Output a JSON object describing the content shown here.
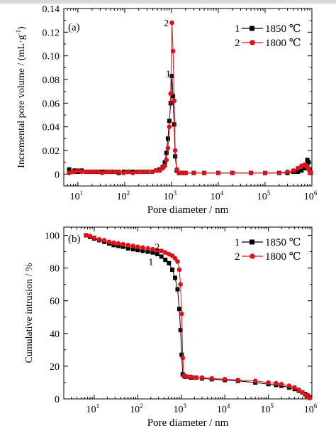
{
  "chart_data": [
    {
      "type": "line",
      "panel_label": "(a)",
      "xlabel": "Pore diameter / nm",
      "ylabel": "Incremental pore volume / (mL·g",
      "ylabel_sup": "-1",
      "ylabel_close": ")",
      "xscale": "log",
      "xlim": [
        5,
        1000000
      ],
      "ylim": [
        -0.01,
        0.14
      ],
      "x_ticks": [
        10,
        100,
        1000,
        10000,
        100000,
        1000000
      ],
      "x_ticklabels": [
        {
          "base": "10",
          "exp": "1"
        },
        {
          "base": "10",
          "exp": "2"
        },
        {
          "base": "10",
          "exp": "3"
        },
        {
          "base": "10",
          "exp": "4"
        },
        {
          "base": "10",
          "exp": "5"
        },
        {
          "base": "10",
          "exp": "6"
        }
      ],
      "y_ticks": [
        "0",
        "0.02",
        "0.04",
        "0.06",
        "0.08",
        "0.10",
        "0.12",
        "0.14"
      ],
      "legend_position": "top-right",
      "annotations": [
        {
          "text": "1",
          "x": 850,
          "y": 0.085
        },
        {
          "text": "2",
          "x": 780,
          "y": 0.128
        }
      ],
      "series": [
        {
          "name": "1850 ℃",
          "legend_number": "1",
          "color": "#000000",
          "marker": "square",
          "x": [
            6.5,
            7.5,
            8.5,
            10,
            12,
            15,
            18,
            22,
            27,
            33,
            40,
            50,
            62,
            75,
            95,
            120,
            150,
            190,
            240,
            300,
            380,
            470,
            560,
            650,
            720,
            780,
            840,
            900,
            960,
            1020,
            1080,
            1140,
            1200,
            1300,
            1450,
            1700,
            2000,
            3000,
            5000,
            10000,
            20000,
            50000,
            100000,
            200000,
            300000,
            400000,
            500000,
            600000,
            700000,
            750000,
            800000,
            850000,
            900000,
            950000
          ],
          "y": [
            0.004,
            0.002,
            0.003,
            0.002,
            0.003,
            0.002,
            0.002,
            0.002,
            0.002,
            0.002,
            0.002,
            0.002,
            0.002,
            0.001,
            0.002,
            0.002,
            0.002,
            0.002,
            0.002,
            0.002,
            0.002,
            0.003,
            0.004,
            0.006,
            0.01,
            0.018,
            0.03,
            0.045,
            0.06,
            0.083,
            0.066,
            0.042,
            0.015,
            0.003,
            0.001,
            0.001,
            0.001,
            0.001,
            0.001,
            0.001,
            0.001,
            0.001,
            0.001,
            0.001,
            0.001,
            0.002,
            0.002,
            0.003,
            0.005,
            0.008,
            0.012,
            0.01,
            0.004,
            0.001
          ]
        },
        {
          "name": "1800 ℃",
          "legend_number": "2",
          "color": "#e0101a",
          "marker": "circle",
          "x": [
            6.5,
            7.5,
            8.5,
            10,
            12,
            15,
            18,
            22,
            27,
            33,
            40,
            50,
            62,
            75,
            95,
            120,
            150,
            190,
            240,
            300,
            380,
            470,
            560,
            650,
            720,
            780,
            840,
            900,
            960,
            1020,
            1080,
            1140,
            1200,
            1300,
            1450,
            1700,
            2000,
            3000,
            5000,
            10000,
            20000,
            50000,
            100000,
            200000,
            300000,
            400000,
            500000,
            600000,
            700000,
            750000,
            800000,
            850000,
            900000,
            950000
          ],
          "y": [
            0.001,
            0.002,
            0.002,
            0.003,
            0.002,
            0.002,
            0.002,
            0.002,
            0.002,
            0.001,
            0.002,
            0.002,
            0.002,
            0.002,
            0.001,
            0.002,
            0.001,
            0.002,
            0.002,
            0.002,
            0.002,
            0.003,
            0.003,
            0.005,
            0.007,
            0.012,
            0.022,
            0.04,
            0.068,
            0.128,
            0.104,
            0.062,
            0.02,
            0.004,
            0.001,
            0.001,
            0.001,
            0.001,
            0.001,
            0.001,
            0.001,
            0.001,
            0.001,
            0.001,
            0.002,
            0.003,
            0.005,
            0.007,
            0.008,
            0.007,
            0.006,
            0.004,
            0.002,
            0.001
          ]
        }
      ]
    },
    {
      "type": "line",
      "panel_label": "(b)",
      "xlabel": "Pore diameter / nm",
      "ylabel": "Cumulative intrusion / %",
      "xscale": "log",
      "xlim": [
        2,
        1000000
      ],
      "ylim": [
        0,
        105
      ],
      "x_ticks": [
        10,
        100,
        1000,
        10000,
        100000,
        1000000
      ],
      "x_ticklabels": [
        {
          "base": "10",
          "exp": "1"
        },
        {
          "base": "10",
          "exp": "2"
        },
        {
          "base": "10",
          "exp": "3"
        },
        {
          "base": "10",
          "exp": "4"
        },
        {
          "base": "10",
          "exp": "5"
        },
        {
          "base": "10",
          "exp": "6"
        }
      ],
      "y_ticks": [
        "0",
        "20",
        "40",
        "60",
        "80",
        "100"
      ],
      "legend_position": "top-right",
      "annotations": [
        {
          "text": "1",
          "x": 200,
          "y": 84
        },
        {
          "text": "2",
          "x": 280,
          "y": 93
        }
      ],
      "series": [
        {
          "name": "1850 ℃",
          "legend_number": "1",
          "color": "#000000",
          "marker": "square",
          "x": [
            6.5,
            8,
            10,
            13,
            17,
            22,
            28,
            36,
            46,
            60,
            78,
            100,
            130,
            170,
            220,
            280,
            350,
            430,
            520,
            620,
            720,
            820,
            900,
            960,
            1020,
            1080,
            1150,
            1250,
            1400,
            1700,
            2200,
            3000,
            5000,
            10000,
            20000,
            50000,
            100000,
            150000,
            200000,
            300000,
            400000,
            500000,
            600000,
            700000,
            800000,
            900000
          ],
          "y": [
            100,
            99,
            98,
            97,
            96,
            95,
            94,
            93.5,
            93,
            92,
            91.5,
            91,
            90.5,
            90,
            89.5,
            88.5,
            87,
            85,
            83,
            79,
            74,
            67,
            55,
            42,
            27,
            15,
            14,
            13.5,
            13.5,
            13,
            13,
            12.5,
            12,
            11.5,
            11,
            10,
            9,
            8.5,
            8,
            7,
            6,
            5,
            4,
            3,
            2,
            1
          ]
        },
        {
          "name": "1800 ℃",
          "legend_number": "2",
          "color": "#e0101a",
          "marker": "circle",
          "x": [
            6.5,
            8,
            10,
            13,
            17,
            22,
            28,
            36,
            46,
            60,
            78,
            100,
            130,
            170,
            220,
            280,
            350,
            430,
            520,
            620,
            720,
            820,
            900,
            960,
            1020,
            1080,
            1150,
            1250,
            1400,
            1700,
            2200,
            3000,
            5000,
            10000,
            20000,
            50000,
            100000,
            150000,
            200000,
            300000,
            400000,
            500000,
            600000,
            700000,
            800000,
            900000
          ],
          "y": [
            100,
            99.5,
            98.5,
            97.5,
            97,
            96,
            95.5,
            95,
            94.5,
            94,
            93.5,
            93,
            92.5,
            92,
            91.5,
            91,
            90.5,
            89.5,
            88.5,
            87.5,
            86,
            84,
            79,
            70,
            52,
            25,
            14,
            14,
            13.5,
            13.5,
            13,
            13,
            12.5,
            12,
            11.5,
            11,
            10,
            9.5,
            9,
            8,
            7,
            5.5,
            4,
            2.5,
            1.5,
            0.5
          ]
        }
      ]
    }
  ]
}
